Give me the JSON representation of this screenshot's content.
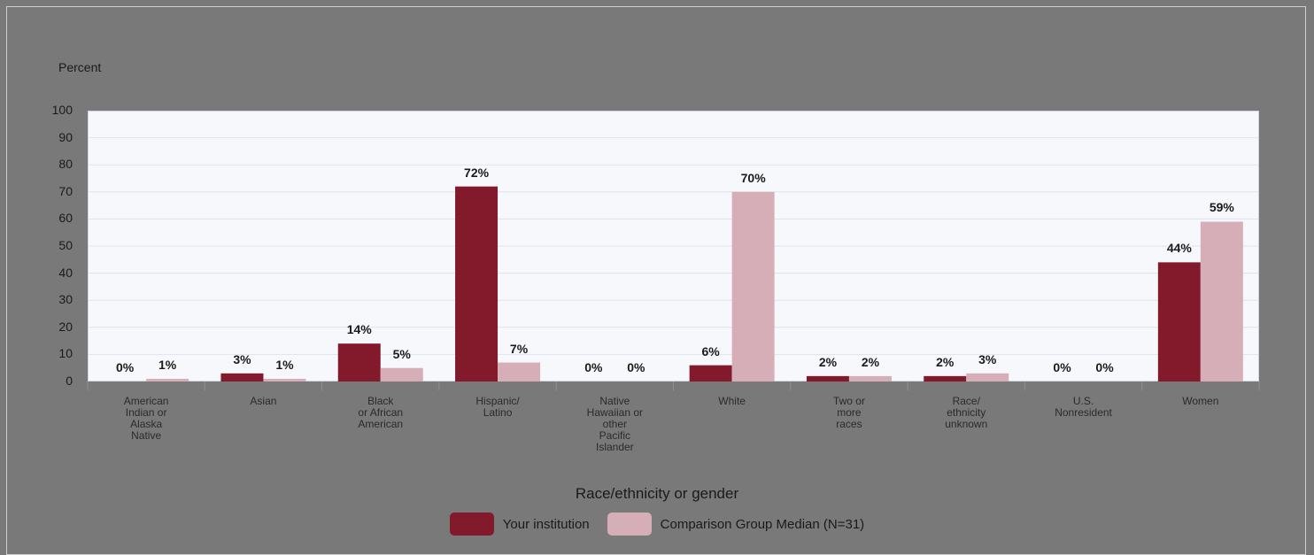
{
  "chart_data": {
    "type": "bar",
    "ylabel": "Percent",
    "xlabel": "Race/ethnicity or gender",
    "ylim": [
      0,
      100
    ],
    "yticks": [
      0,
      10,
      20,
      30,
      40,
      50,
      60,
      70,
      80,
      90,
      100
    ],
    "grid": true,
    "legend_position": "bottom",
    "categories": [
      "American\nIndian or\nAlaska\nNative",
      "Asian",
      "Black\nor African\nAmerican",
      "Hispanic/\nLatino",
      "Native\nHawaiian or\nother\nPacific\nIslander",
      "White",
      "Two or\nmore\nraces",
      "Race/\nethnicity\nunknown",
      "U.S.\nNonresident",
      "Women"
    ],
    "series": [
      {
        "name": "Your institution",
        "color": "#831a2b",
        "values": [
          0,
          3,
          14,
          72,
          0,
          6,
          2,
          2,
          0,
          44
        ],
        "labels": [
          "0%",
          "3%",
          "14%",
          "72%",
          "0%",
          "6%",
          "2%",
          "2%",
          "0%",
          "44%"
        ]
      },
      {
        "name": "Comparison Group Median (N=31)",
        "color": "#d6aeb7",
        "values": [
          1,
          1,
          5,
          7,
          0,
          70,
          2,
          3,
          0,
          59
        ],
        "labels": [
          "1%",
          "1%",
          "5%",
          "7%",
          "0%",
          "70%",
          "2%",
          "3%",
          "0%",
          "59%"
        ]
      }
    ]
  }
}
